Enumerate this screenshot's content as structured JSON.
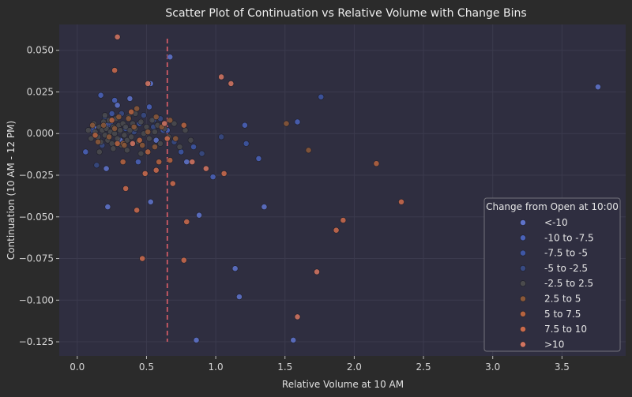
{
  "chart_data": {
    "type": "scatter",
    "title": "Scatter Plot of Continuation vs Relative Volume with Change Bins",
    "xlabel": "Relative Volume at 10 AM",
    "ylabel": "Continuation (10 AM - 12 PM)",
    "xlim": [
      -0.13,
      3.96
    ],
    "ylim": [
      -0.1335,
      0.0655
    ],
    "xticks": [
      "0.0",
      "0.5",
      "1.0",
      "1.5",
      "2.0",
      "2.5",
      "3.0",
      "3.5"
    ],
    "xtick_values": [
      0,
      0.5,
      1,
      1.5,
      2,
      2.5,
      3,
      3.5
    ],
    "yticks": [
      "0.050",
      "0.025",
      "0.000",
      "−0.025",
      "−0.050",
      "−0.075",
      "−0.100",
      "−0.125"
    ],
    "ytick_values": [
      0.05,
      0.025,
      0,
      -0.025,
      -0.05,
      -0.075,
      -0.1,
      -0.125
    ],
    "grid": true,
    "background": "#2f2e40",
    "vline": {
      "x": 0.65,
      "y_range": [
        -0.125,
        0.057
      ],
      "color": "#e0606a"
    },
    "legend": {
      "title": "Change from Open at 10:00",
      "placement": "lower-right",
      "entries": [
        "<-10",
        "-10 to -7.5",
        "-7.5 to -5",
        "-5 to -2.5",
        "-2.5 to 2.5",
        "2.5 to 5",
        "5 to 7.5",
        "7.5 to 10",
        ">10"
      ]
    },
    "series": [
      {
        "label": "<-10",
        "color": "#5f73c9",
        "points": [
          [
            0.29,
            0.017
          ],
          [
            0.38,
            0.021
          ],
          [
            0.53,
            0.03
          ],
          [
            0.21,
            -0.021
          ],
          [
            0.31,
            -0.004
          ],
          [
            0.57,
            -0.004
          ],
          [
            0.22,
            0.005
          ],
          [
            0.12,
            0.004
          ],
          [
            0.53,
            -0.041
          ],
          [
            0.67,
            0.046
          ],
          [
            0.79,
            -0.017
          ],
          [
            0.88,
            -0.049
          ],
          [
            0.86,
            -0.124
          ],
          [
            1.14,
            -0.081
          ],
          [
            1.17,
            -0.098
          ],
          [
            1.35,
            -0.044
          ],
          [
            1.56,
            -0.124
          ],
          [
            3.76,
            0.028
          ],
          [
            0.22,
            -0.044
          ]
        ]
      },
      {
        "label": "-10 to -7.5",
        "color": "#4a62b8",
        "points": [
          [
            0.17,
            0.023
          ],
          [
            0.27,
            0.02
          ],
          [
            0.44,
            -0.017
          ],
          [
            0.52,
            0.016
          ],
          [
            0.65,
            0.002
          ],
          [
            0.98,
            -0.026
          ],
          [
            1.21,
            0.005
          ],
          [
            1.31,
            -0.015
          ],
          [
            1.59,
            0.007
          ],
          [
            0.06,
            -0.011
          ]
        ]
      },
      {
        "label": "-7.5 to -5",
        "color": "#3e56a4",
        "points": [
          [
            0.25,
            0.012
          ],
          [
            0.35,
            0.003
          ],
          [
            0.45,
            0.006
          ],
          [
            0.62,
            0.002
          ],
          [
            0.75,
            -0.011
          ],
          [
            0.84,
            -0.008
          ],
          [
            1.22,
            -0.006
          ],
          [
            1.76,
            0.022
          ],
          [
            0.11,
            0.002
          ],
          [
            0.55,
            0.008
          ]
        ]
      },
      {
        "label": "-5 to -2.5",
        "color": "#384a82",
        "points": [
          [
            0.14,
            -0.019
          ],
          [
            0.2,
            0.01
          ],
          [
            0.24,
            0.006
          ],
          [
            0.32,
            0.012
          ],
          [
            0.41,
            0.001
          ],
          [
            0.48,
            0.011
          ],
          [
            0.55,
            0.004
          ],
          [
            0.6,
            0.009
          ],
          [
            0.7,
            -0.005
          ],
          [
            0.9,
            -0.012
          ],
          [
            1.04,
            -0.002
          ],
          [
            0.18,
            -0.007
          ]
        ]
      },
      {
        "label": "-2.5 to 2.5",
        "color": "#4a4a4c",
        "points": [
          [
            0.08,
            0.002
          ],
          [
            0.1,
            -0.003
          ],
          [
            0.12,
            0.006
          ],
          [
            0.13,
            0.001
          ],
          [
            0.15,
            -0.002
          ],
          [
            0.16,
            0.004
          ],
          [
            0.17,
            -0.005
          ],
          [
            0.18,
            0.002
          ],
          [
            0.19,
            0.007
          ],
          [
            0.2,
            -0.001
          ],
          [
            0.21,
            0.003
          ],
          [
            0.22,
            -0.004
          ],
          [
            0.23,
            0.008
          ],
          [
            0.24,
            0.001
          ],
          [
            0.25,
            -0.006
          ],
          [
            0.26,
            0.004
          ],
          [
            0.27,
            0.0
          ],
          [
            0.28,
            0.009
          ],
          [
            0.29,
            -0.003
          ],
          [
            0.3,
            0.005
          ],
          [
            0.31,
            0.002
          ],
          [
            0.32,
            -0.007
          ],
          [
            0.33,
            0.006
          ],
          [
            0.34,
            -0.001
          ],
          [
            0.35,
            0.004
          ],
          [
            0.36,
            -0.004
          ],
          [
            0.37,
            0.01
          ],
          [
            0.38,
            0.002
          ],
          [
            0.39,
            -0.002
          ],
          [
            0.4,
            0.006
          ],
          [
            0.42,
            0.003
          ],
          [
            0.44,
            -0.005
          ],
          [
            0.46,
            0.007
          ],
          [
            0.48,
            0.0
          ],
          [
            0.5,
            0.004
          ],
          [
            0.52,
            -0.003
          ],
          [
            0.54,
            0.008
          ],
          [
            0.56,
            0.001
          ],
          [
            0.58,
            0.005
          ],
          [
            0.6,
            -0.006
          ],
          [
            0.63,
            0.003
          ],
          [
            0.66,
            -0.002
          ],
          [
            0.7,
            0.006
          ],
          [
            0.74,
            -0.008
          ],
          [
            0.78,
            0.002
          ],
          [
            0.82,
            -0.004
          ],
          [
            0.16,
            -0.011
          ],
          [
            0.26,
            -0.009
          ],
          [
            0.36,
            -0.01
          ],
          [
            0.46,
            -0.012
          ],
          [
            0.2,
            0.011
          ],
          [
            0.42,
            0.012
          ]
        ]
      },
      {
        "label": "2.5 to 5",
        "color": "#8a5838",
        "points": [
          [
            0.11,
            0.005
          ],
          [
            0.15,
            -0.005
          ],
          [
            0.19,
            0.005
          ],
          [
            0.23,
            -0.002
          ],
          [
            0.27,
            0.003
          ],
          [
            0.33,
            -0.006
          ],
          [
            0.37,
            0.009
          ],
          [
            0.41,
            0.004
          ],
          [
            0.43,
            0.015
          ],
          [
            0.47,
            -0.007
          ],
          [
            0.51,
            0.001
          ],
          [
            0.57,
            0.01
          ],
          [
            0.61,
            0.004
          ],
          [
            0.67,
            0.008
          ],
          [
            0.71,
            -0.003
          ],
          [
            1.51,
            0.006
          ],
          [
            1.67,
            -0.01
          ],
          [
            0.34,
            -0.007
          ],
          [
            0.3,
            0.01
          ],
          [
            0.56,
            -0.008
          ]
        ]
      },
      {
        "label": "5 to 7.5",
        "color": "#b5633f",
        "points": [
          [
            0.13,
            -0.001
          ],
          [
            0.25,
            0.008
          ],
          [
            0.33,
            -0.017
          ],
          [
            0.39,
            0.013
          ],
          [
            0.45,
            -0.004
          ],
          [
            0.51,
            -0.011
          ],
          [
            0.59,
            -0.017
          ],
          [
            0.67,
            -0.016
          ],
          [
            0.77,
            0.005
          ],
          [
            2.16,
            -0.018
          ],
          [
            0.29,
            -0.006
          ]
        ]
      },
      {
        "label": "7.5 to 10",
        "color": "#c96a4b",
        "points": [
          [
            0.27,
            0.038
          ],
          [
            0.35,
            -0.033
          ],
          [
            0.43,
            -0.046
          ],
          [
            0.49,
            -0.024
          ],
          [
            0.57,
            -0.022
          ],
          [
            0.65,
            -0.003
          ],
          [
            0.69,
            -0.03
          ],
          [
            0.77,
            -0.076
          ],
          [
            0.79,
            -0.053
          ],
          [
            1.06,
            -0.024
          ],
          [
            1.87,
            -0.058
          ],
          [
            1.92,
            -0.052
          ],
          [
            2.34,
            -0.041
          ],
          [
            0.47,
            -0.075
          ]
        ]
      },
      {
        "label": ">10",
        "color": "#d27460",
        "points": [
          [
            0.29,
            0.058
          ],
          [
            0.51,
            0.03
          ],
          [
            0.63,
            0.006
          ],
          [
            0.83,
            -0.017
          ],
          [
            0.93,
            -0.021
          ],
          [
            1.04,
            0.034
          ],
          [
            1.11,
            0.03
          ],
          [
            1.59,
            -0.11
          ],
          [
            1.73,
            -0.083
          ],
          [
            0.4,
            -0.006
          ]
        ]
      }
    ]
  }
}
